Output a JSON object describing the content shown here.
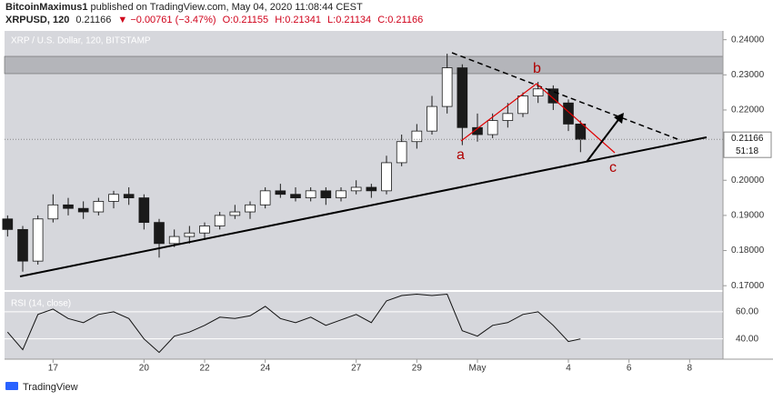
{
  "header": {
    "author": "BitcoinMaximus1",
    "published": "published on TradingView.com, May 04, 2020 11:08:44 CEST",
    "symbol": "XRPUSD, 120",
    "last": "0.21166",
    "change": "−0.00761 (−3.47%)",
    "open": "O:0.21155",
    "high": "H:0.21341",
    "low": "L:0.21134",
    "close": "C:0.21166"
  },
  "chart_data": [
    {
      "type": "candlestick",
      "title": "XRP / U.S. Dollar, 120, BITSTAMP",
      "x": [
        15.5,
        16,
        16.5,
        17,
        17.5,
        18,
        18.5,
        19,
        19.5,
        20,
        20.5,
        21,
        21.5,
        22,
        22.5,
        23,
        23.5,
        24,
        24.5,
        25,
        25.5,
        26,
        26.5,
        27,
        27.5,
        28,
        28.5,
        29,
        29.5,
        30,
        30.5,
        31,
        31.5,
        32,
        32.5,
        33,
        33.5,
        34,
        34.4
      ],
      "open": [
        0.189,
        0.186,
        0.177,
        0.189,
        0.193,
        0.192,
        0.191,
        0.194,
        0.196,
        0.195,
        0.188,
        0.182,
        0.184,
        0.185,
        0.187,
        0.19,
        0.191,
        0.193,
        0.197,
        0.196,
        0.195,
        0.197,
        0.195,
        0.197,
        0.198,
        0.197,
        0.205,
        0.211,
        0.214,
        0.221,
        0.232,
        0.215,
        0.213,
        0.217,
        0.219,
        0.224,
        0.226,
        0.222,
        0.216
      ],
      "high": [
        0.19,
        0.187,
        0.19,
        0.196,
        0.195,
        0.194,
        0.195,
        0.197,
        0.198,
        0.196,
        0.189,
        0.186,
        0.187,
        0.188,
        0.191,
        0.193,
        0.194,
        0.198,
        0.199,
        0.198,
        0.198,
        0.198,
        0.198,
        0.2,
        0.199,
        0.207,
        0.213,
        0.216,
        0.224,
        0.236,
        0.233,
        0.219,
        0.219,
        0.222,
        0.225,
        0.228,
        0.227,
        0.223,
        0.217
      ],
      "low": [
        0.184,
        0.174,
        0.176,
        0.188,
        0.19,
        0.189,
        0.19,
        0.192,
        0.193,
        0.186,
        0.178,
        0.181,
        0.182,
        0.183,
        0.186,
        0.189,
        0.189,
        0.192,
        0.195,
        0.194,
        0.194,
        0.193,
        0.194,
        0.196,
        0.195,
        0.196,
        0.204,
        0.209,
        0.213,
        0.219,
        0.21,
        0.211,
        0.212,
        0.215,
        0.218,
        0.222,
        0.22,
        0.214,
        0.208
      ],
      "close": [
        0.186,
        0.177,
        0.189,
        0.193,
        0.192,
        0.191,
        0.194,
        0.196,
        0.195,
        0.188,
        0.182,
        0.184,
        0.185,
        0.187,
        0.19,
        0.191,
        0.193,
        0.197,
        0.196,
        0.195,
        0.197,
        0.195,
        0.197,
        0.198,
        0.197,
        0.205,
        0.211,
        0.214,
        0.221,
        0.232,
        0.215,
        0.213,
        0.217,
        0.219,
        0.224,
        0.226,
        0.222,
        0.216,
        0.21166
      ],
      "xlim": [
        15.4,
        39.1
      ],
      "xticks": [
        17,
        20,
        22,
        24,
        27,
        29,
        {
          "value": 31,
          "label": "May"
        },
        {
          "value": 34,
          "label": "4"
        },
        {
          "value": 36,
          "label": "6"
        },
        {
          "value": 38,
          "label": "8"
        }
      ],
      "ylim": [
        0.1685,
        0.2425
      ],
      "yticks": [
        {
          "value": 0.24,
          "label": "0.24000"
        },
        {
          "value": 0.23,
          "label": "0.23000"
        },
        {
          "value": 0.22,
          "label": "0.22000"
        },
        {
          "value": 0.21,
          "label": "0.21000"
        },
        {
          "value": 0.2,
          "label": "0.20000"
        },
        {
          "value": 0.19,
          "label": "0.19000"
        },
        {
          "value": 0.18,
          "label": "0.18000"
        },
        {
          "value": 0.17,
          "label": "0.17000"
        }
      ],
      "up_color": "#ffffff",
      "down_color": "#1a1a1a",
      "last_price": {
        "value": 0.21166,
        "label": "0.21166"
      },
      "countdown": "51:18",
      "annotations": [
        "a",
        "b",
        "c"
      ]
    },
    {
      "type": "line",
      "title": "RSI (14, close)",
      "color": "#111111",
      "x": [
        15.5,
        16,
        16.5,
        17,
        17.5,
        18,
        18.5,
        19,
        19.5,
        20,
        20.5,
        21,
        21.5,
        22,
        22.5,
        23,
        23.5,
        24,
        24.5,
        25,
        25.5,
        26,
        26.5,
        27,
        27.5,
        28,
        28.5,
        29,
        29.5,
        30,
        30.5,
        31,
        31.5,
        32,
        32.5,
        33,
        33.5,
        34,
        34.4
      ],
      "values": [
        45,
        32,
        58,
        62,
        55,
        52,
        58,
        60,
        55,
        40,
        30,
        42,
        45,
        50,
        56,
        55,
        57,
        64,
        55,
        52,
        56,
        50,
        54,
        58,
        52,
        68,
        72,
        73,
        72,
        73,
        46,
        42,
        50,
        52,
        58,
        60,
        50,
        38,
        40
      ],
      "ylim": [
        25,
        74
      ],
      "yticks": [
        {
          "value": 60,
          "label": "60.00"
        },
        {
          "value": 40,
          "label": "40.00"
        }
      ]
    }
  ],
  "footer": {
    "brand": "TradingView"
  }
}
